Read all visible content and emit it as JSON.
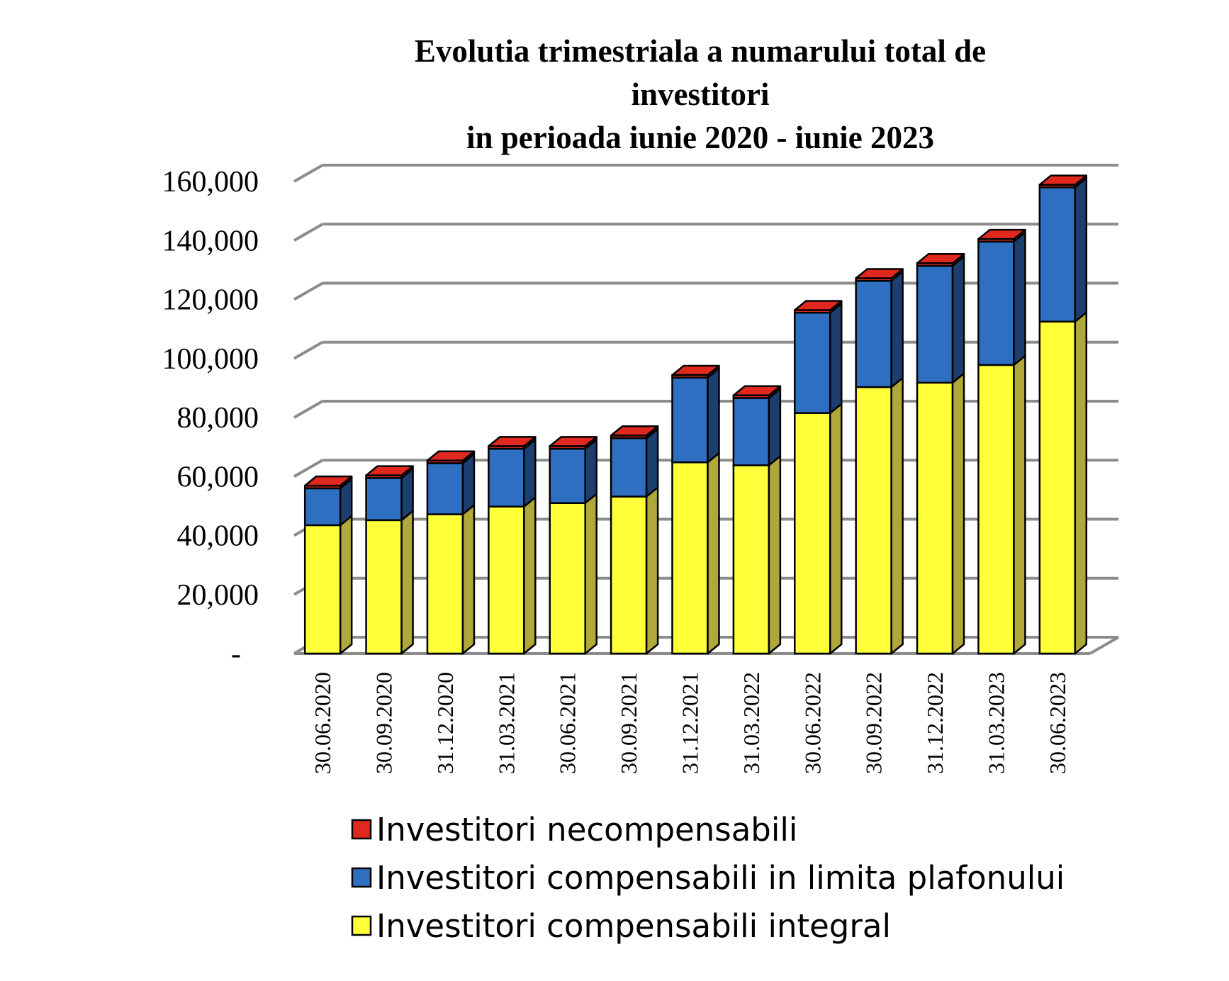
{
  "chart_data": {
    "type": "bar",
    "stacked": true,
    "three_d": true,
    "title_lines": [
      "Evolutia trimestriala a numarului total de",
      "investitori",
      "in perioada iunie 2020 - iunie 2023"
    ],
    "categories": [
      "30.06.2020",
      "30.09.2020",
      "31.12.2020",
      "31.03.2021",
      "30.06.2021",
      "30.09.2021",
      "31.12.2021",
      "31.03.2022",
      "30.06.2022",
      "30.09.2022",
      "31.12.2022",
      "31.03.2023",
      "30.06.2023"
    ],
    "series": [
      {
        "name": "Investitori compensabili integral",
        "color": "#ffff3a",
        "side_color": "#b0a83a",
        "values": [
          43500,
          45200,
          47200,
          49800,
          51000,
          53200,
          64800,
          63800,
          81500,
          90300,
          91800,
          97800,
          112500
        ]
      },
      {
        "name": "Investitori compensabili in limita plafonului",
        "color": "#2f6fc1",
        "side_color": "#1d3f70",
        "values": [
          12500,
          14300,
          17300,
          19600,
          18400,
          19800,
          28700,
          22800,
          34000,
          36000,
          39600,
          41800,
          45500
        ]
      },
      {
        "name": "Investitori necompensabili",
        "color": "#e0281e",
        "side_color": "#8a1812",
        "values": [
          900,
          900,
          900,
          900,
          900,
          900,
          900,
          900,
          900,
          900,
          900,
          900,
          900
        ]
      }
    ],
    "y_ticks": [
      "-",
      "20,000",
      "40,000",
      "60,000",
      "80,000",
      "100,000",
      "120,000",
      "140,000",
      "160,000"
    ],
    "ylim": [
      0,
      160000
    ],
    "y_step": 20000,
    "grid": true,
    "legend_position": "bottom",
    "legend_order": [
      "Investitori necompensabili",
      "Investitori compensabili in limita plafonului",
      "Investitori compensabili integral"
    ],
    "grid_color": "#8c8c8c"
  }
}
